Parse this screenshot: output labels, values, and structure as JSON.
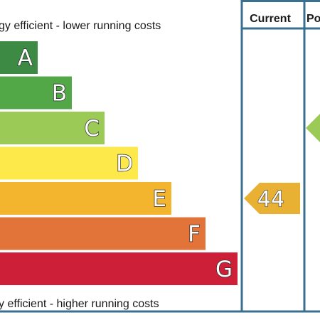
{
  "chart_data": {
    "type": "bar",
    "top_caption": "gy efficient - lower running costs",
    "bottom_caption": "y efficient - higher running costs",
    "columns": {
      "current": "Current",
      "potential": "Po"
    },
    "categories": [
      "A",
      "B",
      "C",
      "D",
      "E",
      "F",
      "G"
    ],
    "colors": [
      "#3d8a44",
      "#52a847",
      "#9cca56",
      "#fde94a",
      "#f3b52e",
      "#e2743a",
      "#ce1f39"
    ],
    "current_rating": {
      "value": "44",
      "band": "E",
      "color": "#e8b134"
    },
    "potential_rating": {
      "band": "C",
      "color": "#9cca56"
    }
  }
}
